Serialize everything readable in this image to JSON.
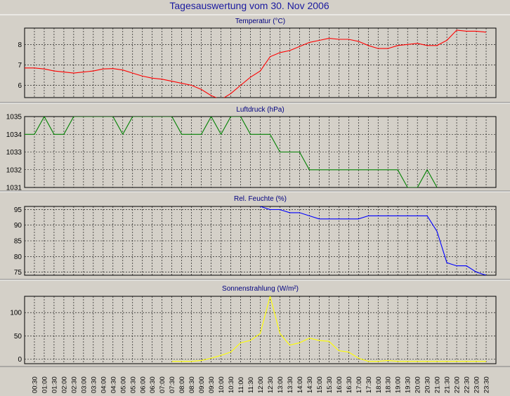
{
  "title": "Tagesauswertung vom 30. Nov 2006",
  "colors": {
    "background": "#d4d0c8",
    "title": "#1a1aa0",
    "temperature": "#ff0000",
    "pressure": "#008000",
    "humidity": "#0000ff",
    "radiation": "#ffff00"
  },
  "x_labels": [
    "00:30",
    "01:00",
    "01:30",
    "02:00",
    "02:30",
    "03:00",
    "03:30",
    "04:00",
    "04:30",
    "05:00",
    "05:30",
    "06:00",
    "06:30",
    "07:00",
    "07:30",
    "08:00",
    "08:30",
    "09:00",
    "09:30",
    "10:00",
    "10:30",
    "11:00",
    "11:30",
    "12:00",
    "12:30",
    "13:00",
    "13:30",
    "14:00",
    "14:30",
    "15:00",
    "15:30",
    "16:00",
    "16:30",
    "17:00",
    "17:30",
    "18:00",
    "18:30",
    "19:00",
    "19:30",
    "20:00",
    "20:30",
    "21:00",
    "21:30",
    "22:00",
    "22:30",
    "23:00",
    "23:30"
  ],
  "chart_data": [
    {
      "type": "line",
      "title": "Temperatur (°C)",
      "x": [
        "00:00",
        "00:30",
        "01:00",
        "01:30",
        "02:00",
        "02:30",
        "03:00",
        "03:30",
        "04:00",
        "04:30",
        "05:00",
        "05:30",
        "06:00",
        "06:30",
        "07:00",
        "07:30",
        "08:00",
        "08:30",
        "09:00",
        "09:30",
        "10:00",
        "10:30",
        "11:00",
        "11:30",
        "12:00",
        "12:30",
        "13:00",
        "13:30",
        "14:00",
        "14:30",
        "15:00",
        "15:30",
        "16:00",
        "16:30",
        "17:00",
        "17:30",
        "18:00",
        "18:30",
        "19:00",
        "19:30",
        "20:00",
        "20:30",
        "21:00",
        "21:30",
        "22:00",
        "22:30",
        "23:00",
        "23:30"
      ],
      "values": [
        6.85,
        6.85,
        6.8,
        6.7,
        6.65,
        6.6,
        6.65,
        6.7,
        6.8,
        6.82,
        6.75,
        6.6,
        6.45,
        6.35,
        6.3,
        6.2,
        6.1,
        6.0,
        5.8,
        5.5,
        5.3,
        5.6,
        6.0,
        6.4,
        6.7,
        7.4,
        7.6,
        7.7,
        7.9,
        8.1,
        8.2,
        8.3,
        8.25,
        8.25,
        8.15,
        7.95,
        7.8,
        7.8,
        7.95,
        8.0,
        8.05,
        7.95,
        7.95,
        8.2,
        8.7,
        8.65,
        8.65,
        8.6
      ],
      "yticks": [
        6,
        7,
        8
      ],
      "ylim": [
        5.4,
        8.8
      ],
      "grid": true
    },
    {
      "type": "line",
      "title": "Luftdruck (hPa)",
      "x": [
        "00:00",
        "00:30",
        "01:00",
        "01:30",
        "02:00",
        "02:30",
        "03:00",
        "03:30",
        "04:00",
        "04:30",
        "05:00",
        "05:30",
        "06:00",
        "06:30",
        "07:00",
        "07:30",
        "08:00",
        "08:30",
        "09:00",
        "09:30",
        "10:00",
        "10:30",
        "11:00",
        "11:30",
        "12:00",
        "12:30",
        "13:00",
        "13:30",
        "14:00",
        "14:30",
        "15:00",
        "15:30",
        "16:00",
        "16:30",
        "17:00",
        "17:30",
        "18:00",
        "18:30",
        "19:00",
        "19:30",
        "20:00",
        "20:30",
        "21:00"
      ],
      "values": [
        1034,
        1034,
        1035,
        1034,
        1034,
        1035,
        1035,
        1035,
        1035,
        1035,
        1034,
        1035,
        1035,
        1035,
        1035,
        1035,
        1034,
        1034,
        1034,
        1035,
        1034,
        1035,
        1035,
        1034,
        1034,
        1034,
        1033,
        1033,
        1033,
        1032,
        1032,
        1032,
        1032,
        1032,
        1032,
        1032,
        1032,
        1032,
        1032,
        1031,
        1031,
        1032,
        1031
      ],
      "yticks": [
        1031,
        1032,
        1033,
        1034,
        1035
      ],
      "ylim": [
        1031,
        1035
      ],
      "grid": true
    },
    {
      "type": "line",
      "title": "Rel. Feuchte (%)",
      "x": [
        "12:00",
        "12:30",
        "13:00",
        "13:30",
        "14:00",
        "14:30",
        "15:00",
        "15:30",
        "16:00",
        "16:30",
        "17:00",
        "17:30",
        "18:00",
        "18:30",
        "19:00",
        "19:30",
        "20:00",
        "20:30",
        "21:00",
        "21:30",
        "22:00",
        "22:30",
        "23:00",
        "23:30"
      ],
      "values": [
        96,
        95,
        95,
        94,
        94,
        93,
        92,
        92,
        92,
        92,
        92,
        93,
        93,
        93,
        93,
        93,
        93,
        93,
        88,
        78,
        77,
        77,
        75,
        74
      ],
      "yticks": [
        75,
        80,
        85,
        90,
        95
      ],
      "ylim": [
        74,
        96
      ],
      "grid": true
    },
    {
      "type": "line",
      "title": "Sonnenstrahlung (W/m²)",
      "x": [
        "07:30",
        "08:00",
        "08:30",
        "09:00",
        "09:30",
        "10:00",
        "10:30",
        "11:00",
        "11:30",
        "12:00",
        "12:30",
        "13:00",
        "13:30",
        "14:00",
        "14:30",
        "15:00",
        "15:30",
        "16:00",
        "16:30",
        "17:00",
        "17:30",
        "18:00",
        "18:30",
        "19:00",
        "19:30",
        "20:00",
        "20:30",
        "21:00",
        "21:30",
        "22:00",
        "22:30",
        "23:00",
        "23:30"
      ],
      "values": [
        -5,
        -5,
        -5,
        -3,
        2,
        8,
        15,
        35,
        40,
        55,
        135,
        55,
        30,
        35,
        45,
        40,
        38,
        18,
        15,
        2,
        -5,
        -5,
        -3,
        -5,
        -5,
        -5,
        -5,
        -5,
        -5,
        -5,
        -5,
        -5,
        -5
      ],
      "yticks": [
        0,
        50,
        100
      ],
      "ylim": [
        -10,
        135
      ],
      "grid": true
    }
  ]
}
